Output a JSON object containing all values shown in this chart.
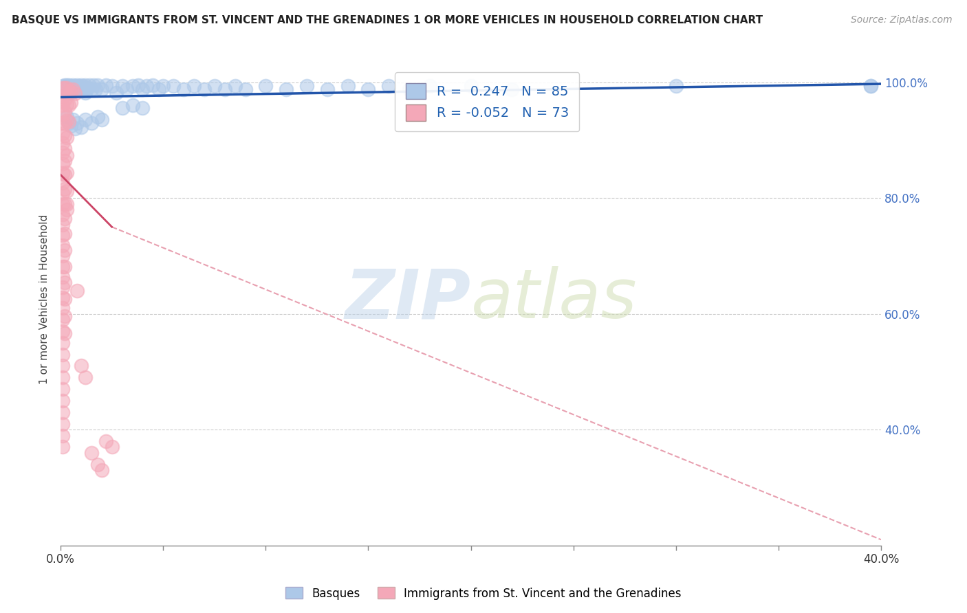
{
  "title": "BASQUE VS IMMIGRANTS FROM ST. VINCENT AND THE GRENADINES 1 OR MORE VEHICLES IN HOUSEHOLD CORRELATION CHART",
  "source": "Source: ZipAtlas.com",
  "ylabel": "1 or more Vehicles in Household",
  "xmin": 0.0,
  "xmax": 0.4,
  "ymin": 0.2,
  "ymax": 1.05,
  "blue_R": 0.247,
  "blue_N": 85,
  "pink_R": -0.052,
  "pink_N": 73,
  "blue_color": "#adc8e8",
  "pink_color": "#f4a8b8",
  "blue_line_color": "#2255aa",
  "pink_line_color": "#cc4466",
  "pink_line_dashed_color": "#e8a0b0",
  "blue_scatter": [
    [
      0.001,
      0.993
    ],
    [
      0.001,
      0.988
    ],
    [
      0.002,
      0.995
    ],
    [
      0.002,
      0.99
    ],
    [
      0.002,
      0.985
    ],
    [
      0.003,
      0.995
    ],
    [
      0.003,
      0.99
    ],
    [
      0.003,
      0.985
    ],
    [
      0.004,
      0.995
    ],
    [
      0.004,
      0.988
    ],
    [
      0.004,
      0.982
    ],
    [
      0.005,
      0.993
    ],
    [
      0.005,
      0.988
    ],
    [
      0.005,
      0.982
    ],
    [
      0.006,
      0.995
    ],
    [
      0.006,
      0.988
    ],
    [
      0.007,
      0.993
    ],
    [
      0.007,
      0.987
    ],
    [
      0.008,
      0.995
    ],
    [
      0.008,
      0.988
    ],
    [
      0.009,
      0.993
    ],
    [
      0.009,
      0.988
    ],
    [
      0.01,
      0.995
    ],
    [
      0.01,
      0.988
    ],
    [
      0.011,
      0.993
    ],
    [
      0.011,
      0.987
    ],
    [
      0.012,
      0.995
    ],
    [
      0.012,
      0.982
    ],
    [
      0.013,
      0.99
    ],
    [
      0.014,
      0.995
    ],
    [
      0.015,
      0.988
    ],
    [
      0.016,
      0.995
    ],
    [
      0.017,
      0.988
    ],
    [
      0.018,
      0.995
    ],
    [
      0.02,
      0.988
    ],
    [
      0.022,
      0.995
    ],
    [
      0.025,
      0.993
    ],
    [
      0.027,
      0.982
    ],
    [
      0.03,
      0.993
    ],
    [
      0.032,
      0.988
    ],
    [
      0.035,
      0.993
    ],
    [
      0.038,
      0.995
    ],
    [
      0.04,
      0.988
    ],
    [
      0.042,
      0.993
    ],
    [
      0.045,
      0.995
    ],
    [
      0.048,
      0.988
    ],
    [
      0.05,
      0.993
    ],
    [
      0.003,
      0.94
    ],
    [
      0.004,
      0.93
    ],
    [
      0.005,
      0.925
    ],
    [
      0.006,
      0.935
    ],
    [
      0.007,
      0.92
    ],
    [
      0.008,
      0.93
    ],
    [
      0.01,
      0.922
    ],
    [
      0.012,
      0.935
    ],
    [
      0.015,
      0.93
    ],
    [
      0.018,
      0.94
    ],
    [
      0.02,
      0.935
    ],
    [
      0.03,
      0.955
    ],
    [
      0.035,
      0.96
    ],
    [
      0.04,
      0.955
    ],
    [
      0.055,
      0.993
    ],
    [
      0.06,
      0.988
    ],
    [
      0.065,
      0.993
    ],
    [
      0.07,
      0.988
    ],
    [
      0.075,
      0.993
    ],
    [
      0.08,
      0.988
    ],
    [
      0.085,
      0.993
    ],
    [
      0.09,
      0.988
    ],
    [
      0.1,
      0.993
    ],
    [
      0.11,
      0.988
    ],
    [
      0.12,
      0.993
    ],
    [
      0.13,
      0.988
    ],
    [
      0.14,
      0.993
    ],
    [
      0.15,
      0.988
    ],
    [
      0.16,
      0.993
    ],
    [
      0.17,
      0.988
    ],
    [
      0.18,
      0.993
    ],
    [
      0.2,
      0.993
    ],
    [
      0.22,
      0.988
    ],
    [
      0.3,
      0.993
    ],
    [
      0.395,
      0.993
    ],
    [
      0.395,
      0.993
    ]
  ],
  "pink_scatter": [
    [
      0.001,
      0.99
    ],
    [
      0.001,
      0.975
    ],
    [
      0.001,
      0.96
    ],
    [
      0.001,
      0.945
    ],
    [
      0.001,
      0.93
    ],
    [
      0.001,
      0.912
    ],
    [
      0.001,
      0.895
    ],
    [
      0.001,
      0.878
    ],
    [
      0.001,
      0.86
    ],
    [
      0.001,
      0.843
    ],
    [
      0.001,
      0.826
    ],
    [
      0.001,
      0.808
    ],
    [
      0.001,
      0.79
    ],
    [
      0.001,
      0.772
    ],
    [
      0.001,
      0.754
    ],
    [
      0.001,
      0.736
    ],
    [
      0.001,
      0.718
    ],
    [
      0.001,
      0.7
    ],
    [
      0.001,
      0.682
    ],
    [
      0.001,
      0.664
    ],
    [
      0.001,
      0.646
    ],
    [
      0.001,
      0.628
    ],
    [
      0.001,
      0.61
    ],
    [
      0.001,
      0.59
    ],
    [
      0.001,
      0.57
    ],
    [
      0.001,
      0.55
    ],
    [
      0.001,
      0.53
    ],
    [
      0.001,
      0.51
    ],
    [
      0.001,
      0.49
    ],
    [
      0.001,
      0.47
    ],
    [
      0.001,
      0.45
    ],
    [
      0.001,
      0.43
    ],
    [
      0.001,
      0.41
    ],
    [
      0.001,
      0.39
    ],
    [
      0.001,
      0.37
    ],
    [
      0.002,
      0.99
    ],
    [
      0.002,
      0.97
    ],
    [
      0.002,
      0.95
    ],
    [
      0.002,
      0.93
    ],
    [
      0.002,
      0.908
    ],
    [
      0.002,
      0.886
    ],
    [
      0.002,
      0.864
    ],
    [
      0.002,
      0.84
    ],
    [
      0.002,
      0.816
    ],
    [
      0.002,
      0.79
    ],
    [
      0.002,
      0.764
    ],
    [
      0.002,
      0.738
    ],
    [
      0.002,
      0.71
    ],
    [
      0.002,
      0.682
    ],
    [
      0.002,
      0.654
    ],
    [
      0.002,
      0.626
    ],
    [
      0.002,
      0.596
    ],
    [
      0.002,
      0.566
    ],
    [
      0.003,
      0.99
    ],
    [
      0.003,
      0.962
    ],
    [
      0.003,
      0.934
    ],
    [
      0.003,
      0.904
    ],
    [
      0.003,
      0.874
    ],
    [
      0.003,
      0.844
    ],
    [
      0.003,
      0.812
    ],
    [
      0.003,
      0.78
    ],
    [
      0.004,
      0.985
    ],
    [
      0.004,
      0.96
    ],
    [
      0.004,
      0.932
    ],
    [
      0.005,
      0.985
    ],
    [
      0.005,
      0.965
    ],
    [
      0.006,
      0.988
    ],
    [
      0.007,
      0.98
    ],
    [
      0.008,
      0.64
    ],
    [
      0.01,
      0.51
    ],
    [
      0.012,
      0.49
    ],
    [
      0.015,
      0.36
    ],
    [
      0.018,
      0.34
    ],
    [
      0.02,
      0.33
    ],
    [
      0.022,
      0.38
    ],
    [
      0.025,
      0.37
    ],
    [
      0.003,
      0.79
    ]
  ],
  "legend_label_blue": "Basques",
  "legend_label_pink": "Immigrants from St. Vincent and the Grenadines",
  "watermark_zip": "ZIP",
  "watermark_atlas": "atlas",
  "background_color": "#ffffff",
  "grid_color": "#cccccc",
  "ytick_values": [
    0.4,
    0.6,
    0.8,
    1.0
  ],
  "ytick_labels": [
    "40.0%",
    "60.0%",
    "80.0%",
    "100.0%"
  ]
}
